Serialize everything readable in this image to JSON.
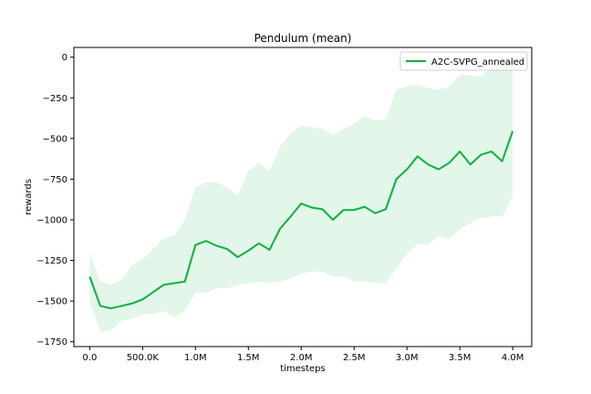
{
  "chart_data": {
    "type": "line",
    "title": "Pendulum (mean)",
    "xlabel": "timesteps",
    "ylabel": "rewards",
    "xlim": [
      -150000,
      4180000
    ],
    "ylim": [
      -1780,
      60
    ],
    "xticks": [
      {
        "value": 0,
        "label": "0.0"
      },
      {
        "value": 500000,
        "label": "500.0K"
      },
      {
        "value": 1000000,
        "label": "1.0M"
      },
      {
        "value": 1500000,
        "label": "1.5M"
      },
      {
        "value": 2000000,
        "label": "2.0M"
      },
      {
        "value": 2500000,
        "label": "2.5M"
      },
      {
        "value": 3000000,
        "label": "3.0M"
      },
      {
        "value": 3500000,
        "label": "3.5M"
      },
      {
        "value": 4000000,
        "label": "4.0M"
      }
    ],
    "yticks": [
      {
        "value": 0,
        "label": "0"
      },
      {
        "value": -250,
        "label": "−250"
      },
      {
        "value": -500,
        "label": "−500"
      },
      {
        "value": -750,
        "label": "−750"
      },
      {
        "value": -1000,
        "label": "−1000"
      },
      {
        "value": -1250,
        "label": "−1250"
      },
      {
        "value": -1500,
        "label": "−1500"
      },
      {
        "value": -1750,
        "label": "−1750"
      }
    ],
    "grid": false,
    "legend_position": "top-right",
    "series": [
      {
        "name": "A2C-SVPG_annealed",
        "color": "#0bb03f",
        "band_color": "#e2f6e9",
        "x": [
          0,
          100000,
          200000,
          300000,
          400000,
          500000,
          600000,
          700000,
          800000,
          900000,
          1000000,
          1100000,
          1200000,
          1300000,
          1400000,
          1500000,
          1600000,
          1700000,
          1800000,
          1900000,
          2000000,
          2100000,
          2200000,
          2300000,
          2400000,
          2500000,
          2600000,
          2700000,
          2800000,
          2900000,
          3000000,
          3100000,
          3200000,
          3300000,
          3400000,
          3500000,
          3600000,
          3700000,
          3800000,
          3900000,
          4000000
        ],
        "mean": [
          -1350,
          -1530,
          -1545,
          -1530,
          -1515,
          -1490,
          -1445,
          -1400,
          -1390,
          -1380,
          -1155,
          -1130,
          -1160,
          -1180,
          -1230,
          -1190,
          -1145,
          -1185,
          -1055,
          -980,
          -900,
          -925,
          -935,
          -1000,
          -940,
          -940,
          -920,
          -960,
          -935,
          -750,
          -690,
          -610,
          -660,
          -690,
          -650,
          -580,
          -660,
          -600,
          -580,
          -640,
          -455
        ],
        "lower": [
          -1500,
          -1690,
          -1680,
          -1620,
          -1610,
          -1580,
          -1580,
          -1560,
          -1600,
          -1560,
          -1450,
          -1450,
          -1420,
          -1420,
          -1400,
          -1390,
          -1380,
          -1390,
          -1380,
          -1360,
          -1330,
          -1320,
          -1320,
          -1350,
          -1350,
          -1380,
          -1380,
          -1390,
          -1390,
          -1300,
          -1210,
          -1150,
          -1150,
          -1100,
          -1120,
          -1060,
          -1020,
          -990,
          -980,
          -980,
          -860
        ],
        "upper": [
          -1200,
          -1380,
          -1400,
          -1370,
          -1280,
          -1240,
          -1180,
          -1110,
          -1100,
          -1000,
          -800,
          -770,
          -770,
          -800,
          -850,
          -700,
          -650,
          -700,
          -550,
          -470,
          -420,
          -430,
          -440,
          -480,
          -440,
          -410,
          -360,
          -390,
          -380,
          -200,
          -180,
          -170,
          -190,
          -200,
          -180,
          -110,
          -110,
          -120,
          -60,
          -80,
          -30
        ]
      }
    ]
  }
}
